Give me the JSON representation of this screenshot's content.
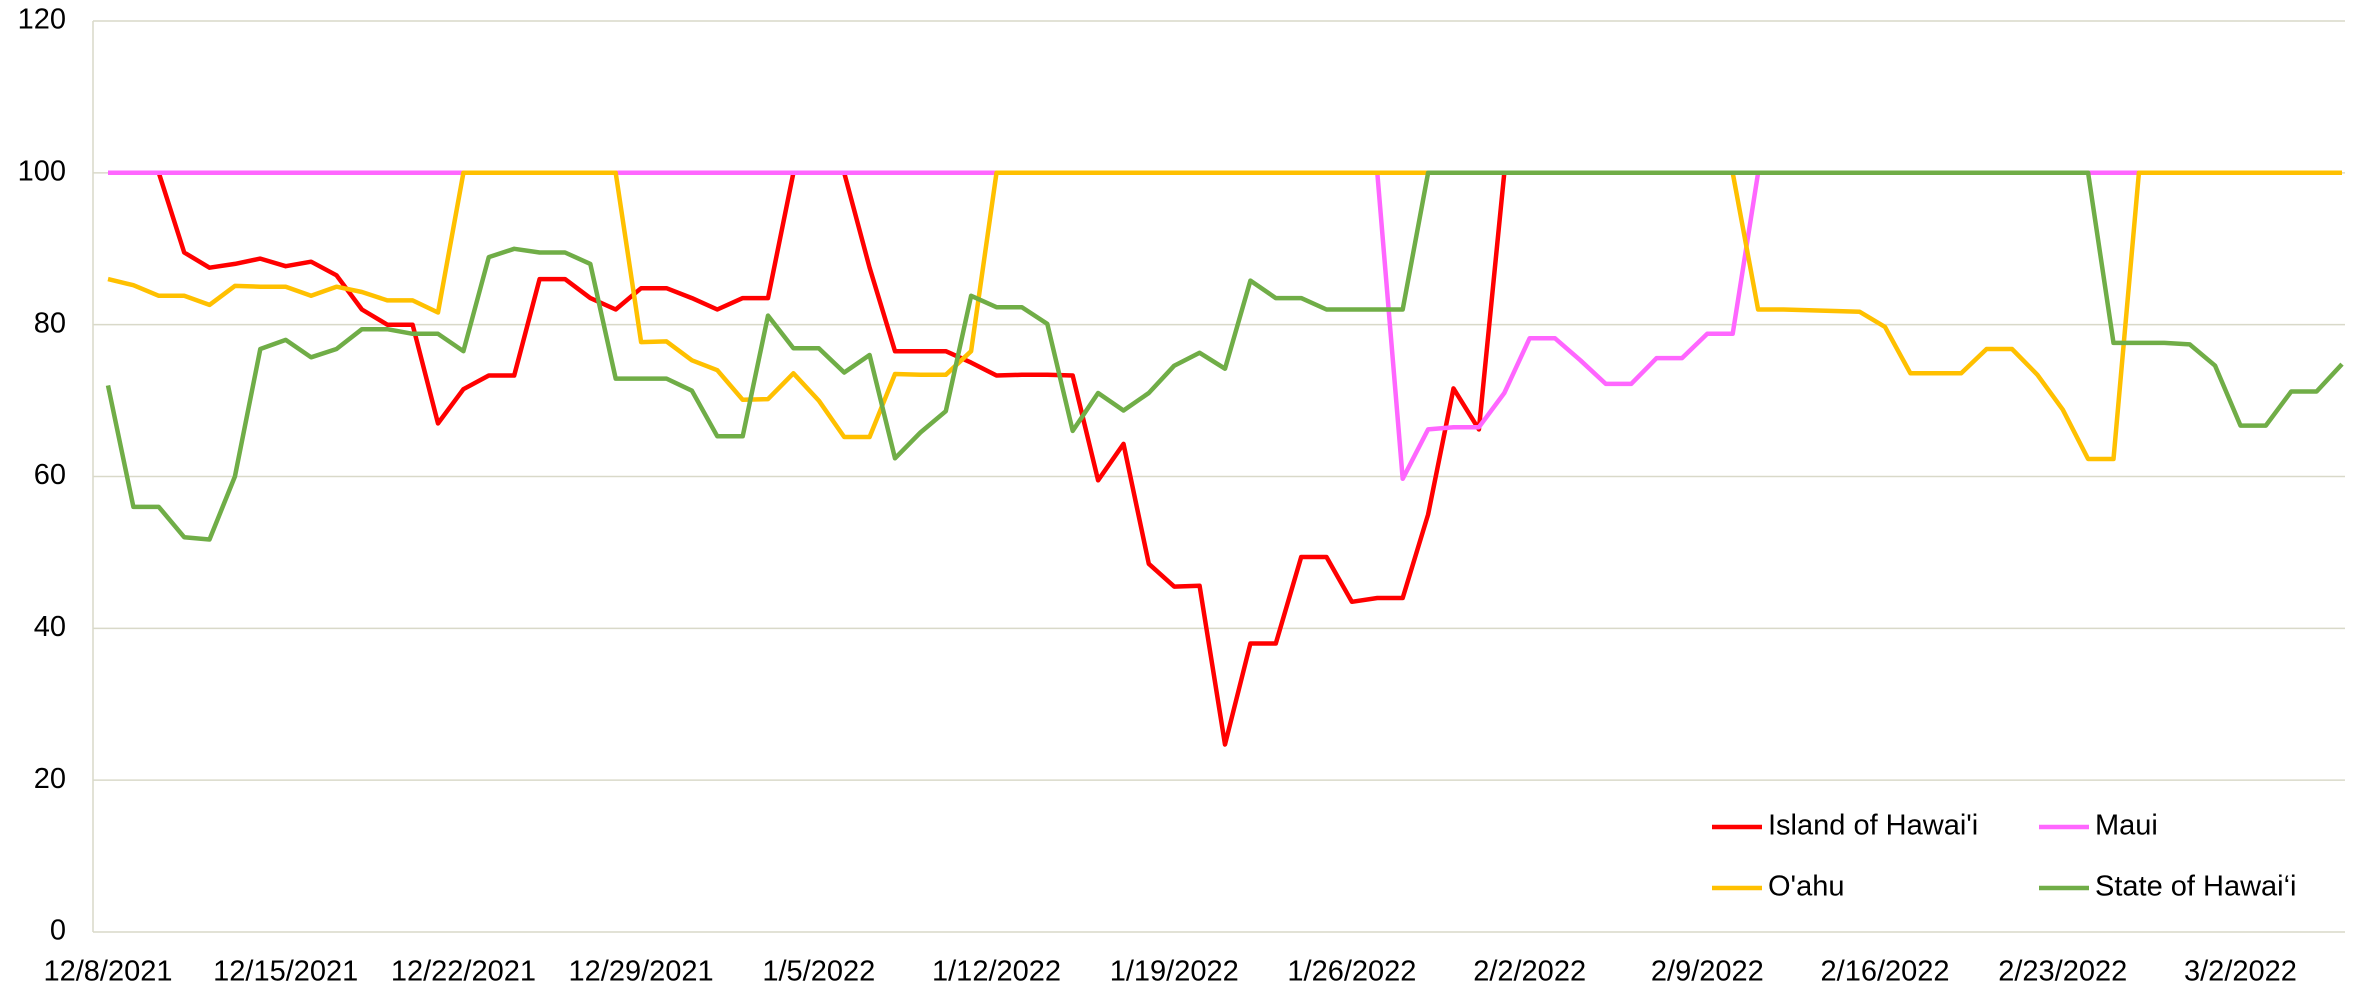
{
  "chart_data": {
    "type": "line",
    "categories": [
      "12/8/2021",
      null,
      null,
      null,
      null,
      null,
      null,
      "12/15/2021",
      null,
      null,
      null,
      null,
      null,
      null,
      "12/22/2021",
      null,
      null,
      null,
      null,
      null,
      null,
      "12/29/2021",
      null,
      null,
      null,
      null,
      null,
      null,
      "1/5/2022",
      null,
      null,
      null,
      null,
      null,
      null,
      "1/12/2022",
      null,
      null,
      null,
      null,
      null,
      null,
      "1/19/2022",
      null,
      null,
      null,
      null,
      null,
      null,
      "1/26/2022",
      null,
      null,
      null,
      null,
      null,
      null,
      "2/2/2022",
      null,
      null,
      null,
      null,
      null,
      null,
      "2/9/2022",
      null,
      null,
      null,
      null,
      null,
      null,
      "2/16/2022",
      null,
      null,
      null,
      null,
      null,
      null,
      "2/23/2022",
      null,
      null,
      null,
      null,
      null,
      null,
      "3/2/2022",
      null,
      null,
      null,
      null
    ],
    "series": [
      {
        "name": "Island of Hawai'i",
        "color": "#ff0000",
        "values": [
          100,
          100,
          100,
          89.5,
          87.5,
          88,
          88.7,
          87.7,
          88.3,
          86.5,
          82,
          80,
          80,
          67,
          71.5,
          73.3,
          73.3,
          86,
          86,
          83.5,
          82,
          84.8,
          84.8,
          83.5,
          82,
          83.5,
          83.5,
          100,
          100,
          100,
          87.5,
          76.5,
          76.5,
          76.5,
          75,
          73.3,
          73.4,
          73.4,
          73.3,
          59.5,
          64.3,
          48.5,
          45.5,
          45.6,
          24.7,
          38,
          38,
          49.4,
          49.4,
          43.5,
          44,
          44,
          55,
          71.6,
          66.2,
          100,
          100,
          100,
          100,
          100,
          100,
          100,
          100,
          100,
          100,
          100,
          100,
          100,
          100,
          100,
          100,
          100,
          100,
          100,
          100,
          100,
          100,
          100,
          100,
          100,
          100,
          100,
          100,
          100,
          100,
          100,
          100,
          100,
          100
        ]
      },
      {
        "name": "Maui",
        "color": "#ff66ff",
        "values": [
          100,
          100,
          100,
          100,
          100,
          100,
          100,
          100,
          100,
          100,
          100,
          100,
          100,
          100,
          100,
          100,
          100,
          100,
          100,
          100,
          100,
          100,
          100,
          100,
          100,
          100,
          100,
          100,
          100,
          100,
          100,
          100,
          100,
          100,
          100,
          100,
          100,
          100,
          100,
          100,
          100,
          100,
          100,
          100,
          100,
          100,
          100,
          100,
          100,
          100,
          100,
          59.7,
          66.2,
          66.5,
          66.5,
          71,
          78.2,
          78.2,
          75.3,
          72.2,
          72.2,
          75.6,
          75.6,
          78.8,
          78.8,
          100,
          100,
          100,
          100,
          100,
          100,
          100,
          100,
          100,
          100,
          100,
          100,
          100,
          100,
          100,
          100,
          100,
          100,
          100,
          100,
          100,
          100,
          100,
          100
        ]
      },
      {
        "name": "O'ahu",
        "color": "#ffc000",
        "values": [
          86,
          85.2,
          83.8,
          83.8,
          82.6,
          85.1,
          85,
          85,
          83.8,
          85,
          84.3,
          83.2,
          83.2,
          81.6,
          100,
          100,
          100,
          100,
          100,
          100,
          100,
          77.7,
          77.8,
          75.3,
          74,
          70.1,
          70.2,
          73.6,
          70,
          65.2,
          65.2,
          73.5,
          73.4,
          73.4,
          76.5,
          100,
          100,
          100,
          100,
          100,
          100,
          100,
          100,
          100,
          100,
          100,
          100,
          100,
          100,
          100,
          100,
          100,
          100,
          100,
          100,
          100,
          100,
          100,
          100,
          100,
          100,
          100,
          100,
          100,
          100,
          82,
          82,
          81.9,
          81.8,
          81.7,
          79.7,
          73.6,
          73.6,
          73.6,
          76.8,
          76.8,
          73.4,
          68.8,
          62.3,
          62.3,
          100,
          100,
          100,
          100,
          100,
          100,
          100,
          100,
          100
        ]
      },
      {
        "name": "State of Hawai‘i",
        "color": "#70ad47",
        "values": [
          72,
          56,
          56,
          52,
          51.7,
          60,
          76.8,
          78,
          75.7,
          76.8,
          79.4,
          79.4,
          78.8,
          78.8,
          76.5,
          88.9,
          90,
          89.5,
          89.5,
          88,
          72.9,
          72.9,
          72.9,
          71.3,
          65.3,
          65.3,
          81.2,
          76.9,
          76.9,
          73.7,
          76,
          62.4,
          65.8,
          68.6,
          83.8,
          82.3,
          82.3,
          80.1,
          66,
          71,
          68.7,
          71,
          74.6,
          76.3,
          74.2,
          85.8,
          83.5,
          83.5,
          82,
          82,
          82,
          82,
          100,
          100,
          100,
          100,
          100,
          100,
          100,
          100,
          100,
          100,
          100,
          100,
          100,
          100,
          100,
          100,
          100,
          100,
          100,
          100,
          100,
          100,
          100,
          100,
          100,
          100,
          100,
          77.6,
          77.6,
          77.6,
          77.4,
          74.6,
          66.7,
          66.7,
          71.2,
          71.2,
          74.8
        ]
      }
    ],
    "ylim": [
      0,
      120
    ],
    "yticks": [
      0,
      20,
      40,
      60,
      80,
      100,
      120
    ],
    "grid": true,
    "legend": "lower right"
  }
}
